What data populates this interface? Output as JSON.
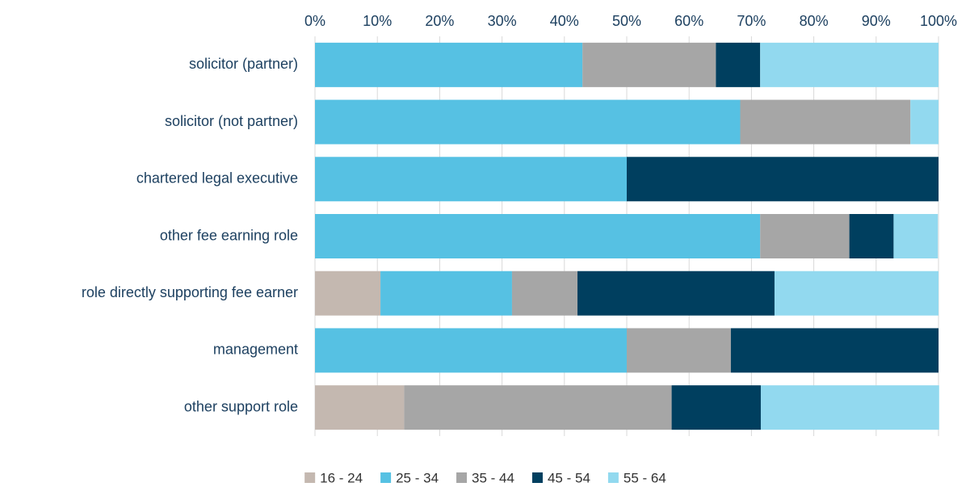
{
  "chart_data": {
    "type": "stacked_bar_horizontal",
    "categories": [
      "solicitor (partner)",
      "solicitor (not partner)",
      "chartered legal executive",
      "other fee earning role",
      "role directly supporting fee earner",
      "management",
      "other support role"
    ],
    "series": [
      {
        "name": "16 - 24",
        "color": "#c4b8b0",
        "values": [
          0,
          0,
          0,
          0,
          10.5,
          0,
          14.3
        ]
      },
      {
        "name": "25 - 34",
        "color": "#56c1e3",
        "values": [
          42.9,
          68.2,
          50,
          71.4,
          21.1,
          50,
          0
        ]
      },
      {
        "name": "35 - 44",
        "color": "#a6a6a6",
        "values": [
          21.4,
          27.3,
          0,
          14.3,
          10.5,
          16.7,
          42.9
        ]
      },
      {
        "name": "45 - 54",
        "color": "#003f5f",
        "values": [
          7.1,
          0,
          50,
          7.1,
          31.6,
          33.3,
          14.3
        ]
      },
      {
        "name": "55 - 64",
        "color": "#92d9ef",
        "values": [
          28.6,
          4.5,
          0,
          7.1,
          26.3,
          0,
          28.6
        ]
      }
    ],
    "xlim": [
      0,
      100
    ],
    "xticks": [
      {
        "value": 0,
        "label": "0%"
      },
      {
        "value": 10,
        "label": "10%"
      },
      {
        "value": 20,
        "label": "20%"
      },
      {
        "value": 30,
        "label": "30%"
      },
      {
        "value": 40,
        "label": "40%"
      },
      {
        "value": 50,
        "label": "50%"
      },
      {
        "value": 60,
        "label": "60%"
      },
      {
        "value": 70,
        "label": "70%"
      },
      {
        "value": 80,
        "label": "80%"
      },
      {
        "value": 90,
        "label": "90%"
      },
      {
        "value": 100,
        "label": "100%"
      }
    ],
    "grid": true,
    "legend": "bottom"
  }
}
